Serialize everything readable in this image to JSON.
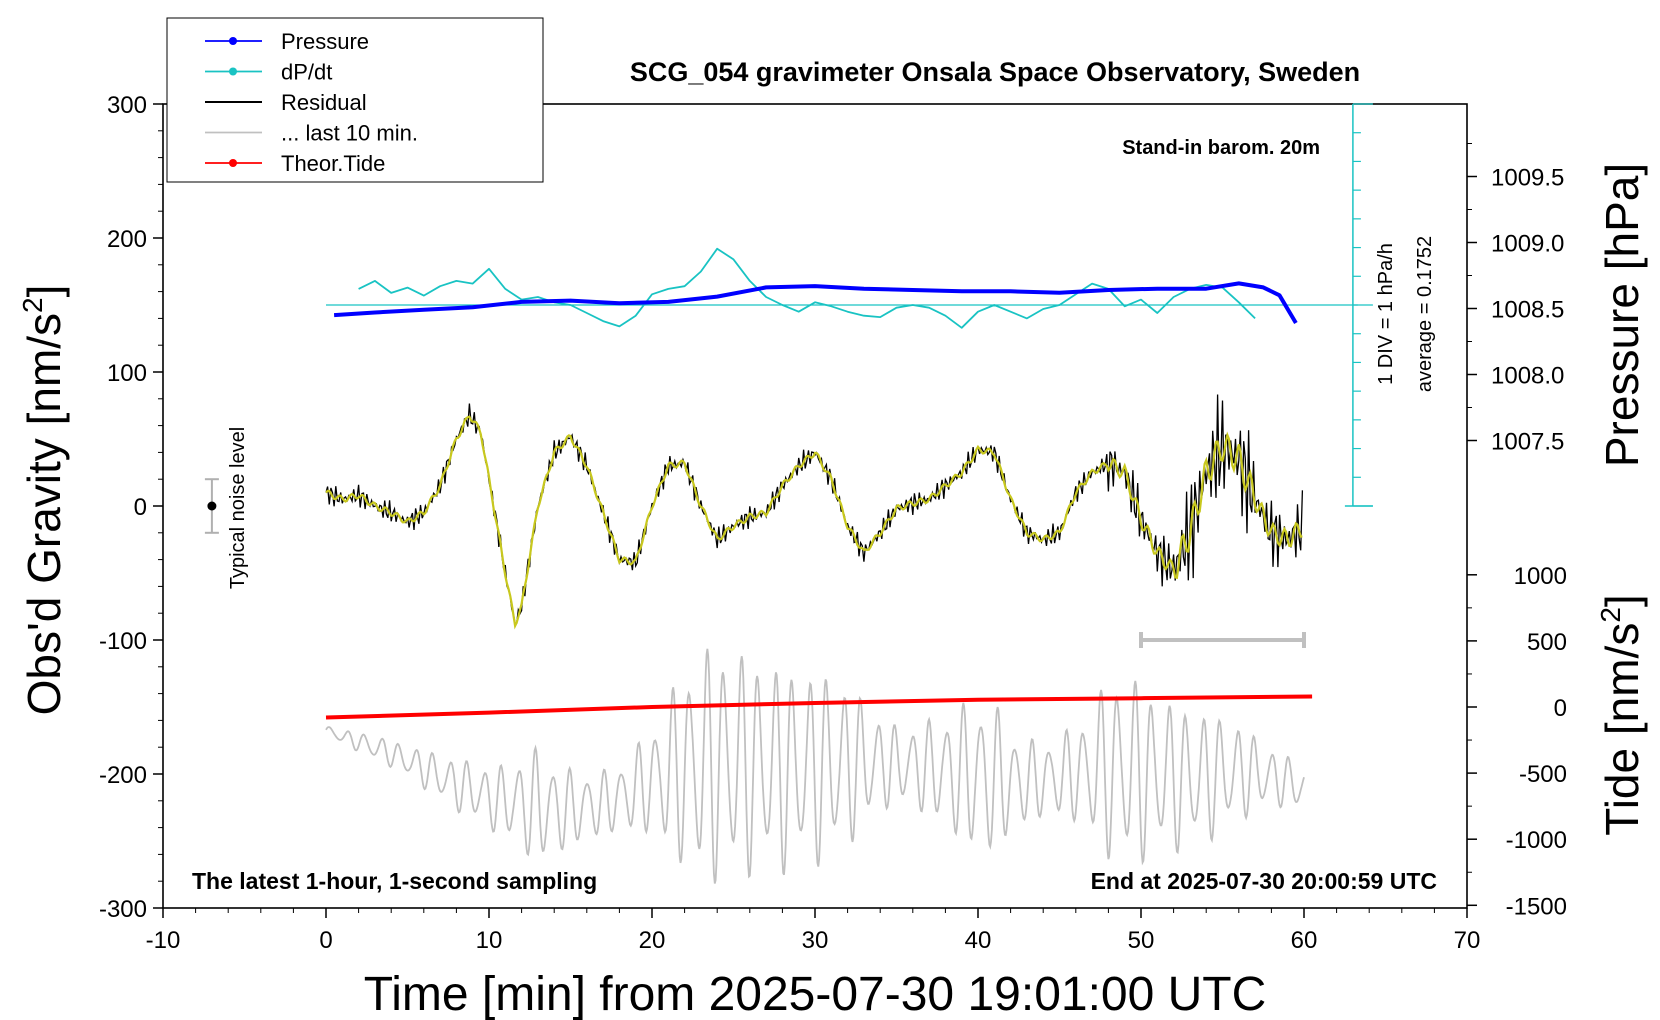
{
  "chart_data": {
    "type": "line",
    "title": "SCG_054 gravimeter Onsala Space Observatory, Sweden",
    "xlabel": "Time [min] from 2025-07-30 19:01:00 UTC",
    "ylabel_left": "Obs'd Gravity",
    "ylabel_left_unit": "[nm/s",
    "ylabel_left_sup": "2",
    "ylabel_left_close": "]",
    "ylabel_right_pressure": "Pressure [hPa]",
    "ylabel_right_tide": "Tide [nm/s",
    "ylabel_right_tide_sup": "2",
    "ylabel_right_tide_close": "]",
    "xlim": [
      -10,
      70
    ],
    "ylim": [
      -300,
      300
    ],
    "pressure_lim": [
      1007.5,
      1009.5
    ],
    "tide_lim": [
      -1500,
      1000
    ],
    "x_ticks": [
      "-10",
      "0",
      "10",
      "20",
      "30",
      "40",
      "50",
      "60",
      "70"
    ],
    "y_ticks": [
      "300",
      "200",
      "100",
      "0",
      "-100",
      "-200",
      "-300"
    ],
    "pressure_ticks": [
      "1009.5",
      "1009.0",
      "1008.5",
      "1008.0",
      "1007.5"
    ],
    "tide_ticks": [
      "1000",
      "500",
      "0",
      "-500",
      "-1000",
      "-1500"
    ],
    "legend": [
      {
        "label": "Pressure",
        "color": "#0000ff",
        "marker": true
      },
      {
        "label": "dP/dt",
        "color": "#19c3c3",
        "marker": true
      },
      {
        "label": "Residual",
        "color": "#000000",
        "marker": false
      },
      {
        "label": "... last 10 min.",
        "color": "#c0c0c0",
        "marker": false
      },
      {
        "label": "Theor.Tide",
        "color": "#ff0000",
        "marker": true
      }
    ],
    "annotations": {
      "barometer": "Stand-in barom. 20m",
      "dpdt_scale": "1 DIV = 1 hPa/h",
      "dpdt_average": "average = 0.1752",
      "noise": "Typical noise level",
      "sampling": "The latest 1-hour, 1-second sampling",
      "end_time": "End at 2025-07-30 20:00:59 UTC"
    },
    "noise_bar": {
      "x": -7,
      "y": 0,
      "half_range": 20
    },
    "last10_bracket": [
      50,
      60
    ],
    "series": [
      {
        "name": "Pressure",
        "units": "hPa",
        "x": [
          0.5,
          3,
          6,
          9,
          12,
          15,
          18,
          21,
          24,
          27,
          30,
          33,
          36,
          39,
          42,
          45,
          48,
          51,
          54,
          56,
          57.5,
          58.5,
          59.5
        ],
        "values": [
          1008.45,
          1008.47,
          1008.49,
          1008.51,
          1008.55,
          1008.56,
          1008.54,
          1008.55,
          1008.59,
          1008.66,
          1008.67,
          1008.65,
          1008.64,
          1008.63,
          1008.63,
          1008.62,
          1008.64,
          1008.65,
          1008.65,
          1008.69,
          1008.66,
          1008.6,
          1008.39
        ]
      },
      {
        "name": "dP/dt",
        "x": [
          2,
          3,
          4,
          5,
          6,
          7,
          8,
          9,
          10,
          11,
          12,
          13,
          14,
          15,
          16,
          17,
          18,
          19,
          20,
          21,
          22,
          23,
          24,
          25,
          26,
          27,
          28,
          29,
          30,
          31,
          32,
          33,
          34,
          35,
          36,
          37,
          38,
          39,
          40,
          41,
          42,
          43,
          44,
          45,
          46,
          47,
          48,
          49,
          50,
          51,
          52,
          53,
          54,
          55,
          56,
          57
        ],
        "values": [
          162,
          168,
          159,
          163,
          157,
          164,
          168,
          166,
          177,
          162,
          154,
          156,
          152,
          150,
          144,
          138,
          134,
          142,
          158,
          162,
          164,
          175,
          192,
          184,
          168,
          156,
          150,
          145,
          152,
          149,
          145,
          142,
          141,
          148,
          150,
          148,
          142,
          133,
          145,
          150,
          145,
          140,
          147,
          150,
          158,
          166,
          162,
          149,
          154,
          144,
          156,
          162,
          165,
          163,
          152,
          140
        ]
      },
      {
        "name": "Residual",
        "units": "nm/s^2",
        "x": [
          0,
          1,
          2,
          3,
          4,
          5,
          6,
          7,
          8,
          8.8,
          9.5,
          10,
          11,
          11.6,
          12,
          13,
          14,
          15,
          16,
          17,
          18,
          19,
          20,
          21,
          22,
          23,
          24,
          25,
          26,
          27,
          28,
          29,
          30,
          31,
          32,
          33,
          34,
          35,
          36,
          37,
          38,
          39,
          40,
          41,
          42,
          43,
          44,
          45,
          46,
          47,
          48,
          49,
          50,
          51,
          52,
          53,
          54,
          55,
          56,
          57,
          58,
          59,
          60
        ],
        "values": [
          10,
          5,
          8,
          0,
          -5,
          -12,
          -5,
          15,
          50,
          68,
          55,
          20,
          -50,
          -88,
          -75,
          0,
          40,
          52,
          30,
          -5,
          -40,
          -42,
          0,
          30,
          32,
          0,
          -25,
          -15,
          -8,
          -5,
          15,
          30,
          40,
          20,
          -15,
          -35,
          -20,
          -2,
          2,
          5,
          15,
          25,
          42,
          40,
          5,
          -20,
          -25,
          -20,
          10,
          25,
          32,
          25,
          -10,
          -35,
          -48,
          -20,
          25,
          45,
          35,
          5,
          -20,
          -25,
          -15
        ]
      },
      {
        "name": "... last 10 min.",
        "x": [
          0,
          1,
          2,
          3,
          4,
          5,
          6,
          7,
          8,
          9,
          10,
          11,
          12,
          13,
          14,
          15,
          16,
          17,
          18,
          19,
          20,
          21,
          22,
          23,
          24,
          25,
          26,
          27,
          28,
          29,
          30,
          31,
          32,
          33,
          34,
          35,
          36,
          37,
          38,
          39,
          40,
          41,
          42,
          43,
          44,
          45,
          46,
          47,
          48,
          49,
          50,
          51,
          52,
          53,
          54,
          55,
          56,
          57,
          58,
          59,
          60
        ],
        "values": [
          -168,
          -172,
          -176,
          -180,
          -185,
          -190,
          -196,
          -202,
          -208,
          -212,
          -218,
          -220,
          -222,
          -224,
          -226,
          -226,
          -224,
          -222,
          -218,
          -212,
          -205,
          -200,
          -196,
          -194,
          -192,
          -192,
          -193,
          -194,
          -196,
          -196,
          -195,
          -194,
          -193,
          -192,
          -192,
          -193,
          -194,
          -196,
          -198,
          -200,
          -202,
          -204,
          -206,
          -206,
          -204,
          -202,
          -200,
          -198,
          -196,
          -196,
          -198,
          -200,
          -202,
          -203,
          -202,
          -200,
          -198,
          -200,
          -202,
          -206,
          -210
        ],
        "amplitude": [
          4,
          4,
          6,
          8,
          8,
          10,
          12,
          14,
          16,
          18,
          20,
          22,
          30,
          36,
          30,
          24,
          22,
          20,
          22,
          26,
          34,
          48,
          62,
          72,
          74,
          72,
          68,
          66,
          64,
          62,
          60,
          58,
          50,
          40,
          30,
          24,
          26,
          30,
          36,
          42,
          50,
          46,
          34,
          26,
          24,
          26,
          30,
          42,
          56,
          60,
          56,
          50,
          46,
          44,
          40,
          36,
          30,
          24,
          18,
          16,
          14
        ]
      },
      {
        "name": "Theor.Tide",
        "units": "nm/s^2",
        "x": [
          0,
          10,
          20,
          30,
          40,
          50,
          60.5
        ],
        "values": [
          -13,
          -7,
          0,
          5,
          9,
          11,
          13
        ]
      }
    ]
  }
}
